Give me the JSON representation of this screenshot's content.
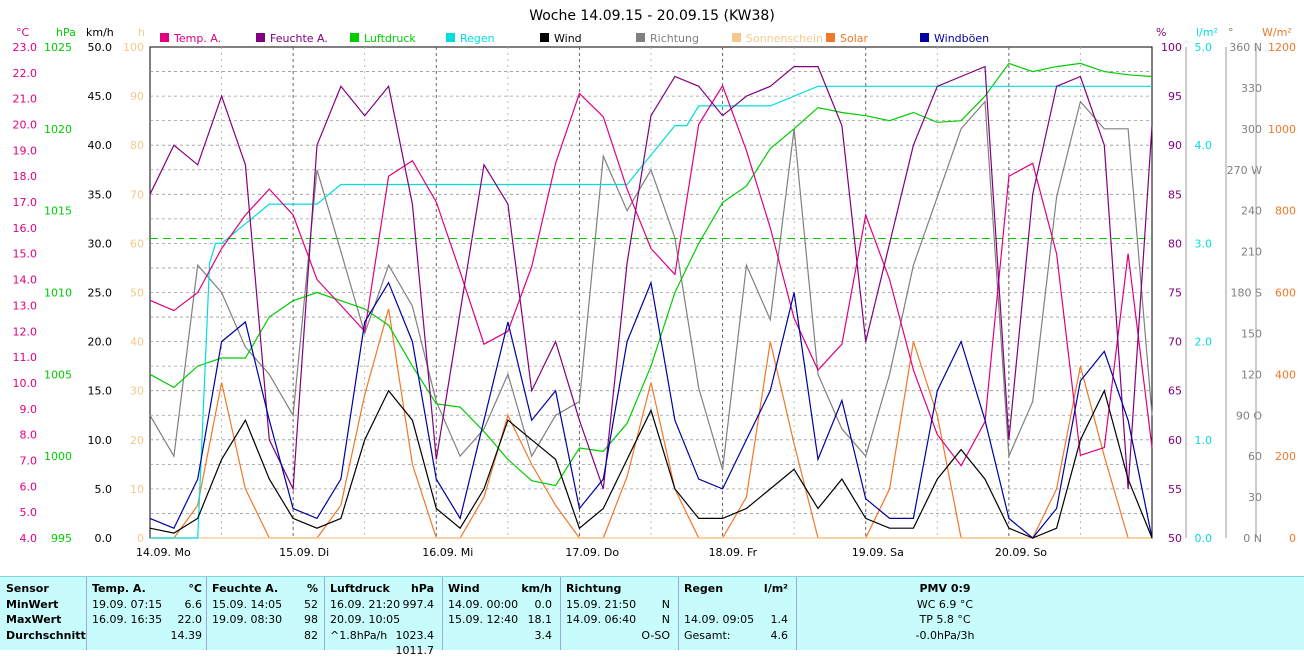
{
  "title": "Woche 14.09.15 - 20.09.15 (KW38)",
  "colors": {
    "temp": "#e0007f",
    "feuchte": "#80007f",
    "luftdruck": "#00cc00",
    "regen": "#00dede",
    "wind": "#000000",
    "richtung": "#808080",
    "sonnenschein": "#f5c98c",
    "solar": "#f07828",
    "windboeen": "#0000a0"
  },
  "axes": {
    "temp": {
      "unit": "°C",
      "ticks": [
        "23.0",
        "22.0",
        "21.0",
        "20.0",
        "19.0",
        "18.0",
        "17.0",
        "16.0",
        "15.0",
        "14.0",
        "13.0",
        "12.0",
        "11.0",
        "10.0",
        "9.0",
        "8.0",
        "7.0",
        "6.0",
        "5.0",
        "4.0"
      ]
    },
    "hpa": {
      "unit": "hPa",
      "ticks": [
        "1025",
        "1020",
        "1015",
        "1010",
        "1005",
        "1000",
        "995"
      ]
    },
    "kmh": {
      "unit": "km/h",
      "ticks": [
        "50.0",
        "45.0",
        "40.0",
        "35.0",
        "30.0",
        "25.0",
        "20.0",
        "15.0",
        "10.0",
        "5.0",
        "0.0"
      ]
    },
    "h": {
      "unit": "h",
      "ticks": [
        "100",
        "90",
        "80",
        "70",
        "60",
        "50",
        "40",
        "30",
        "20",
        "10",
        "0"
      ]
    },
    "pct": {
      "unit": "%",
      "ticks": [
        "100",
        "95",
        "90",
        "85",
        "80",
        "75",
        "70",
        "65",
        "60",
        "55",
        "50"
      ]
    },
    "lm2": {
      "unit": "l/m²",
      "ticks": [
        "5.0",
        "4.0",
        "3.0",
        "2.0",
        "1.0",
        "0.0"
      ]
    },
    "deg": {
      "unit": "°",
      "ticks": [
        "360 N",
        "330",
        "300",
        "270 W",
        "240",
        "210",
        "180 S",
        "150",
        "120",
        "90 O",
        "60",
        "30",
        "0 N"
      ]
    },
    "wm2": {
      "unit": "W/m²",
      "ticks": [
        "1200",
        "1000",
        "800",
        "600",
        "400",
        "200",
        "0"
      ]
    },
    "days": [
      "14.09.  Mo",
      "15.09.  Di",
      "16.09.  Mi",
      "17.09.  Do",
      "18.09.  Fr",
      "19.09.  Sa",
      "20.09.  So"
    ]
  },
  "legend": [
    "Temp. A.",
    "Feuchte A.",
    "Luftdruck",
    "Regen",
    "Wind",
    "Richtung",
    "Sonnenschein",
    "Solar",
    "Windböen"
  ],
  "chart_data": {
    "type": "line",
    "x_unit": "hours since 14.09. 00:00",
    "reference_line": {
      "axis": "kmh",
      "value": 30.5
    },
    "series": [
      {
        "name": "Temp. A.",
        "axis": "temp",
        "x": [
          0,
          4,
          8,
          12,
          16,
          20,
          24,
          28,
          32,
          36,
          40,
          44,
          48,
          52,
          56,
          60,
          64,
          68,
          72,
          76,
          80,
          84,
          88,
          92,
          96,
          100,
          104,
          108,
          112,
          116,
          120,
          124,
          128,
          132,
          136,
          140,
          144,
          148,
          152,
          156,
          160,
          164,
          168
        ],
        "values": [
          13.2,
          12.8,
          13.5,
          15.2,
          16.5,
          17.5,
          16.5,
          14.0,
          13.0,
          12.0,
          18.0,
          18.6,
          17.0,
          14.3,
          11.5,
          12.0,
          14.5,
          18.5,
          21.2,
          20.3,
          17.5,
          15.2,
          14.2,
          20.0,
          21.5,
          19.0,
          16.0,
          12.5,
          10.5,
          11.5,
          16.5,
          14.0,
          10.5,
          8.0,
          6.8,
          8.5,
          18.0,
          18.5,
          15.0,
          7.2,
          7.5,
          15.0,
          7.5
        ]
      },
      {
        "name": "Feuchte A.",
        "axis": "pct",
        "x": [
          0,
          4,
          8,
          12,
          16,
          20,
          24,
          28,
          32,
          36,
          40,
          44,
          48,
          52,
          56,
          60,
          64,
          68,
          72,
          76,
          80,
          84,
          88,
          92,
          96,
          100,
          104,
          108,
          112,
          116,
          120,
          124,
          128,
          132,
          136,
          140,
          144,
          148,
          152,
          156,
          160,
          164,
          168
        ],
        "values": [
          85,
          90,
          88,
          95,
          88,
          60,
          55,
          90,
          96,
          93,
          96,
          84,
          58,
          73,
          88,
          84,
          65,
          70,
          62,
          55,
          78,
          93,
          97,
          96,
          93,
          95,
          96,
          98,
          98,
          92,
          70,
          80,
          90,
          96,
          97,
          98,
          60,
          85,
          96,
          97,
          90,
          55,
          92
        ]
      },
      {
        "name": "Luftdruck",
        "axis": "hpa",
        "x": [
          0,
          4,
          8,
          12,
          16,
          20,
          24,
          28,
          32,
          36,
          40,
          44,
          48,
          52,
          56,
          60,
          64,
          68,
          72,
          76,
          80,
          84,
          88,
          92,
          96,
          100,
          104,
          108,
          112,
          116,
          120,
          124,
          128,
          132,
          136,
          140,
          144,
          148,
          152,
          156,
          160,
          164,
          168
        ],
        "values": [
          1005,
          1004.2,
          1005.5,
          1006,
          1006,
          1008.5,
          1009.5,
          1010,
          1009.5,
          1009,
          1008,
          1005.5,
          1003.2,
          1003,
          1001.5,
          999.8,
          998.5,
          998.2,
          1000.5,
          1000.3,
          1002,
          1005.5,
          1010,
          1013,
          1015.5,
          1016.5,
          1018.8,
          1020,
          1021.3,
          1021,
          1020.8,
          1020.5,
          1021,
          1020.4,
          1020.5,
          1022,
          1024,
          1023.5,
          1023.8,
          1024,
          1023.5,
          1023.3,
          1023.2
        ]
      },
      {
        "name": "Regen",
        "axis": "lm2",
        "x": [
          0,
          8,
          9,
          10,
          11,
          12,
          20,
          22,
          24,
          28,
          32,
          36,
          40,
          48,
          56,
          64,
          72,
          80,
          88,
          90,
          92,
          96,
          104,
          112,
          120,
          128,
          136,
          144,
          152,
          160,
          168
        ],
        "values": [
          0,
          0,
          1.4,
          2.8,
          3.0,
          3.0,
          3.4,
          3.4,
          3.4,
          3.4,
          3.6,
          3.6,
          3.6,
          3.6,
          3.6,
          3.6,
          3.6,
          3.6,
          4.2,
          4.2,
          4.4,
          4.4,
          4.4,
          4.6,
          4.6,
          4.6,
          4.6,
          4.6,
          4.6,
          4.6,
          4.6
        ]
      },
      {
        "name": "Wind",
        "axis": "kmh",
        "x": [
          0,
          4,
          8,
          12,
          16,
          20,
          24,
          28,
          32,
          36,
          40,
          44,
          48,
          52,
          56,
          60,
          64,
          68,
          72,
          76,
          80,
          84,
          88,
          92,
          96,
          100,
          104,
          108,
          112,
          116,
          120,
          124,
          128,
          132,
          136,
          140,
          144,
          148,
          152,
          156,
          160,
          164,
          168
        ],
        "values": [
          1,
          0.5,
          2,
          8,
          12,
          6,
          2,
          1,
          2,
          10,
          15,
          12,
          3,
          1,
          5,
          12,
          10,
          8,
          1,
          3,
          8,
          13,
          5,
          2,
          2,
          3,
          5,
          7,
          3,
          6,
          2,
          1,
          1,
          6,
          9,
          6,
          1,
          0,
          1,
          10,
          15,
          6,
          0
        ]
      },
      {
        "name": "Richtung",
        "axis": "deg",
        "x": [
          0,
          4,
          8,
          12,
          16,
          20,
          24,
          28,
          32,
          36,
          40,
          44,
          48,
          52,
          56,
          60,
          64,
          68,
          72,
          76,
          80,
          84,
          88,
          92,
          96,
          100,
          104,
          108,
          112,
          116,
          120,
          124,
          128,
          132,
          136,
          140,
          144,
          148,
          152,
          156,
          160,
          164,
          168
        ],
        "values": [
          90,
          60,
          200,
          180,
          140,
          120,
          90,
          270,
          210,
          150,
          200,
          170,
          100,
          60,
          80,
          120,
          60,
          90,
          100,
          280,
          240,
          270,
          220,
          110,
          50,
          200,
          160,
          300,
          120,
          80,
          60,
          120,
          200,
          250,
          300,
          320,
          60,
          100,
          250,
          320,
          300,
          300,
          90
        ]
      },
      {
        "name": "Sonnenschein",
        "axis": "h",
        "x": [
          0,
          168
        ],
        "values": [
          0,
          0
        ]
      },
      {
        "name": "Solar",
        "axis": "wm2",
        "x": [
          0,
          4,
          8,
          12,
          16,
          20,
          24,
          28,
          32,
          36,
          40,
          44,
          48,
          52,
          56,
          60,
          64,
          68,
          72,
          76,
          80,
          84,
          88,
          92,
          96,
          100,
          104,
          108,
          112,
          116,
          120,
          124,
          128,
          132,
          136,
          140,
          144,
          148,
          152,
          156,
          160,
          164,
          168
        ],
        "values": [
          0,
          0,
          80,
          380,
          120,
          0,
          0,
          0,
          80,
          350,
          560,
          180,
          0,
          0,
          100,
          300,
          180,
          80,
          0,
          0,
          150,
          380,
          120,
          0,
          0,
          100,
          480,
          230,
          0,
          0,
          0,
          120,
          480,
          300,
          0,
          0,
          0,
          0,
          120,
          420,
          200,
          0,
          0
        ]
      },
      {
        "name": "Windböen",
        "axis": "kmh",
        "x": [
          0,
          4,
          8,
          12,
          16,
          20,
          24,
          28,
          32,
          36,
          40,
          44,
          48,
          52,
          56,
          60,
          64,
          68,
          72,
          76,
          80,
          84,
          88,
          92,
          96,
          100,
          104,
          108,
          112,
          116,
          120,
          124,
          128,
          132,
          136,
          140,
          144,
          148,
          152,
          156,
          160,
          164,
          168
        ],
        "values": [
          2,
          1,
          6,
          20,
          22,
          12,
          3,
          2,
          6,
          22,
          26,
          20,
          6,
          2,
          12,
          22,
          12,
          15,
          3,
          6,
          20,
          26,
          12,
          6,
          5,
          10,
          15,
          25,
          8,
          14,
          4,
          2,
          2,
          15,
          20,
          12,
          2,
          0,
          3,
          16,
          19,
          12,
          0
        ]
      }
    ]
  },
  "stats": {
    "headers": {
      "sensor": "Sensor",
      "temp": "Temp. A.",
      "temp_u": "°C",
      "feuchte": "Feuchte A.",
      "feuchte_u": "%",
      "luft": "Luftdruck",
      "luft_u": "hPa",
      "wind": "Wind",
      "wind_u": "km/h",
      "richt": "Richtung",
      "regen": "Regen",
      "regen_u": "l/m²",
      "pmv": "PMV 0:9"
    },
    "rows": [
      {
        "label": "MinWert",
        "temp_t": "19.09.  07:15",
        "temp_v": "6.6",
        "feu_t": "15.09.  14:05",
        "feu_v": "52",
        "luft_t": "16.09.  21:20",
        "luft_v": "997.4",
        "wind_t": "14.09.  00:00",
        "wind_v": "0.0",
        "richt_t": "15.09.  21:50",
        "richt_v": "N",
        "regen_t": "",
        "regen_v": "",
        "pmv": "WC 6.9 °C"
      },
      {
        "label": "MaxWert",
        "temp_t": "16.09.  16:35",
        "temp_v": "22.0",
        "feu_t": "19.09.  08:30",
        "feu_v": "98",
        "luft_t": "20.09.  10:05",
        "luft_v": "1023.4",
        "wind_t": "15.09.  12:40",
        "wind_v": "18.1",
        "richt_t": "14.09.  06:40",
        "richt_v": "N",
        "regen_t": "14.09.  09:05",
        "regen_v": "1.4",
        "pmv": "TP 5.8 °C"
      },
      {
        "label": "Durchschnitt",
        "temp_t": "",
        "temp_v": "14.39",
        "feu_t": "",
        "feu_v": "82",
        "luft_t": "^1.8hPa/h",
        "luft_v": "1011.7",
        "wind_t": "",
        "wind_v": "3.4",
        "richt_t": "",
        "richt_v": "O-SO",
        "regen_t": "Gesamt:",
        "regen_v": "4.6",
        "pmv": "-0.0hPa/3h"
      }
    ]
  }
}
